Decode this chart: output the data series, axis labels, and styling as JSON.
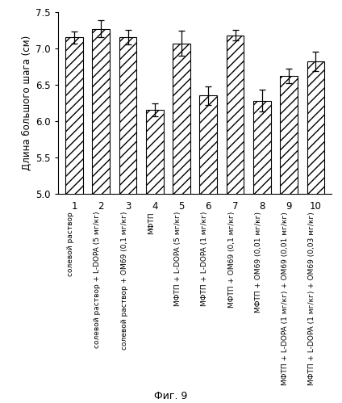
{
  "categories": [
    "1",
    "2",
    "3",
    "4",
    "5",
    "6",
    "7",
    "8",
    "9",
    "10"
  ],
  "values": [
    7.15,
    7.27,
    7.15,
    6.15,
    7.07,
    6.35,
    7.18,
    6.28,
    6.62,
    6.82
  ],
  "errors": [
    0.08,
    0.12,
    0.1,
    0.09,
    0.17,
    0.13,
    0.07,
    0.15,
    0.1,
    0.13
  ],
  "ylim": [
    5.0,
    7.5
  ],
  "yticks": [
    5.0,
    5.5,
    6.0,
    6.5,
    7.0,
    7.5
  ],
  "ylabel": "Длина большого шага (см)",
  "xlabel_labels": [
    "солевой раствор",
    "солевой раствор + L-DOPA (5 мг/кг)",
    "солевой раствор + ОМ69 (0,1 мг/кг)",
    "МФТП",
    "МФТП + L-DOPA (5 мг/кг)",
    "МФТП + L-DOPA (1 мг/кг)",
    "МФТП + ОМ69 (0,1 мг/кг)",
    "МФТП + ОМ69 (0,01 мг/кг)",
    "МФТП + L-DOPA (1 мг/кг) + ОМ69 (0,01 мг/кг)",
    "МФТП + L-DOPA (1 мг/кг) + ОМ69 (0,03 мг/кг)"
  ],
  "caption": "Фиг. 9",
  "bar_color": "#ffffff",
  "bar_edgecolor": "#000000",
  "hatch": "///",
  "figsize": [
    4.24,
    4.99
  ],
  "dpi": 100
}
